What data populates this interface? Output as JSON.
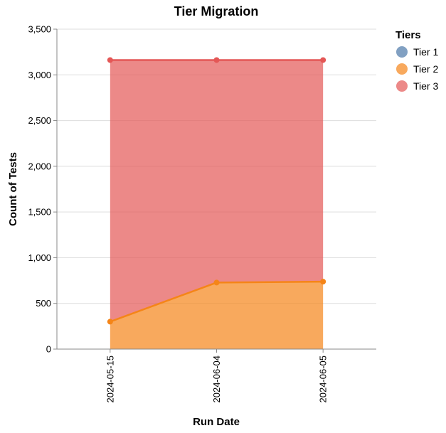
{
  "chart_data": {
    "type": "area",
    "title": "Tier Migration",
    "xlabel": "Run Date",
    "ylabel": "Count of Tests",
    "ylim": [
      0,
      3500
    ],
    "yticks": [
      0,
      500,
      1000,
      1500,
      2000,
      2500,
      3000,
      3500
    ],
    "ytick_labels": [
      "0",
      "500",
      "1,000",
      "1,500",
      "2,000",
      "2,500",
      "3,000",
      "3,500"
    ],
    "stacked": true,
    "grid": true,
    "categories": [
      "2024-05-15",
      "2024-06-04",
      "2024-06-05"
    ],
    "legend": {
      "title": "Tiers",
      "position": "right"
    },
    "series": [
      {
        "name": "Tier 1",
        "color": "#4c78a8",
        "values": [
          0,
          0,
          0
        ]
      },
      {
        "name": "Tier 2",
        "color": "#f58518",
        "values": [
          300,
          728,
          738
        ]
      },
      {
        "name": "Tier 3",
        "color": "#e45756",
        "values": [
          2862,
          2434,
          2424
        ]
      }
    ]
  }
}
